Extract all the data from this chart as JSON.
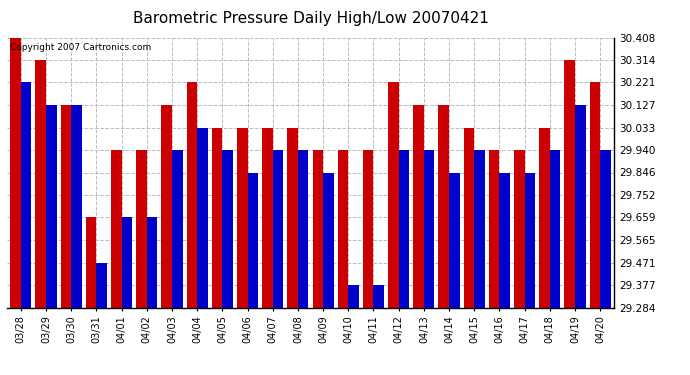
{
  "title": "Barometric Pressure Daily High/Low 20070421",
  "copyright": "Copyright 2007 Cartronics.com",
  "dates": [
    "03/28",
    "03/29",
    "03/30",
    "03/31",
    "04/01",
    "04/02",
    "04/03",
    "04/04",
    "04/05",
    "04/06",
    "04/07",
    "04/08",
    "04/09",
    "04/10",
    "04/11",
    "04/12",
    "04/13",
    "04/14",
    "04/15",
    "04/16",
    "04/17",
    "04/18",
    "04/19",
    "04/20"
  ],
  "highs": [
    30.408,
    30.314,
    30.127,
    29.659,
    29.94,
    29.94,
    30.127,
    30.221,
    30.033,
    30.033,
    30.033,
    30.033,
    29.94,
    29.94,
    29.94,
    30.221,
    30.127,
    30.127,
    30.033,
    29.94,
    29.94,
    30.033,
    30.314,
    30.221
  ],
  "lows": [
    30.221,
    30.127,
    30.127,
    29.471,
    29.659,
    29.659,
    29.94,
    30.033,
    29.94,
    29.846,
    29.94,
    29.94,
    29.846,
    29.377,
    29.377,
    29.94,
    29.94,
    29.846,
    29.94,
    29.846,
    29.846,
    29.94,
    30.127,
    29.94
  ],
  "ymin": 29.284,
  "ymax": 30.408,
  "yticks": [
    29.284,
    29.377,
    29.471,
    29.565,
    29.659,
    29.752,
    29.846,
    29.94,
    30.033,
    30.127,
    30.221,
    30.314,
    30.408
  ],
  "high_color": "#cc0000",
  "low_color": "#0000cc",
  "bg_color": "#ffffff",
  "grid_color": "#bbbbbb",
  "title_fontsize": 11,
  "bar_width": 0.42
}
